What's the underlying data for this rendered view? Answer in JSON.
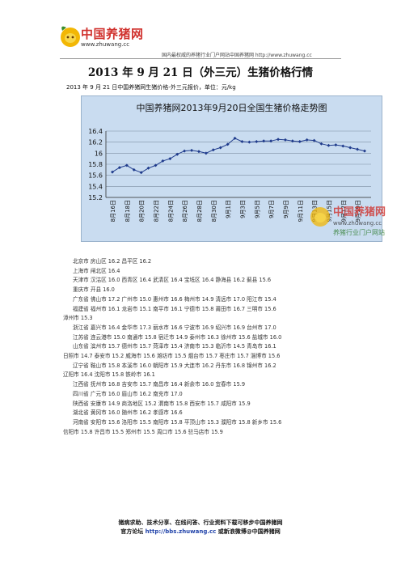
{
  "header": {
    "logo_text": "中国养猪网",
    "logo_url": "www.zhuwang.cc",
    "tagline": "国内最权威的养猪行业门户网站中国养猪网 http://www.zhuwang.cc"
  },
  "title": "2013 年 9 月 21 日（外三元）生猪价格行情",
  "subtitle": "2013 年 9 月 21 日中国养猪网生猪价格-外三元报价，单位：元/kg",
  "chart_data": {
    "type": "line",
    "title": "中国养猪网2013年9月20日全国生猪价格走势图",
    "categories": [
      "8月16日",
      "8月18日",
      "8月20日",
      "8月22日",
      "8月24日",
      "8月26日",
      "8月28日",
      "8月30日",
      "9月1日",
      "9月3日",
      "9月5日",
      "9月7日",
      "9月9日",
      "9月11日",
      "9月13日",
      "9月15日",
      "9月17日",
      "9月19日"
    ],
    "x": [
      "8月16日",
      "8月17日",
      "8月18日",
      "8月19日",
      "8月20日",
      "8月21日",
      "8月22日",
      "8月23日",
      "8月24日",
      "8月25日",
      "8月26日",
      "8月27日",
      "8月28日",
      "8月29日",
      "8月30日",
      "8月31日",
      "9月1日",
      "9月2日",
      "9月3日",
      "9月4日",
      "9月5日",
      "9月6日",
      "9月7日",
      "9月8日",
      "9月9日",
      "9月10日",
      "9月11日",
      "9月12日",
      "9月13日",
      "9月14日",
      "9月15日",
      "9月16日",
      "9月17日",
      "9月18日",
      "9月19日",
      "9月20日"
    ],
    "series": [
      {
        "values": [
          15.66,
          15.74,
          15.78,
          15.7,
          15.65,
          15.73,
          15.78,
          15.86,
          15.9,
          15.98,
          16.04,
          16.05,
          16.03,
          16.0,
          16.06,
          16.1,
          16.16,
          16.27,
          16.21,
          16.2,
          16.21,
          16.22,
          16.22,
          16.25,
          16.24,
          16.22,
          16.21,
          16.24,
          16.23,
          16.17,
          16.14,
          16.15,
          16.13,
          16.1,
          16.07,
          16.04
        ]
      }
    ],
    "yticks": [
      "15.2",
      "15.4",
      "15.6",
      "15.8",
      "16",
      "16.2",
      "16.4"
    ],
    "ylim": [
      15.2,
      16.4
    ],
    "line_color": "#1f3b8c",
    "grid": true
  },
  "watermark": {
    "text": "中国养猪网",
    "url": "www.zhuwang.cc",
    "tagline": "养猪行业门户网站"
  },
  "data_lines": [
    {
      "indent": true,
      "text": "北京市  房山区 16.2  昌平区 16.2"
    },
    {
      "indent": true,
      "text": "上海市  闸北区 16.4"
    },
    {
      "indent": true,
      "text": "天津市  汉沽区 16.0  西青区 16.4  武清区 16.4  宝坻区 16.4  静海县 16.2  蓟县 15.6"
    },
    {
      "indent": true,
      "text": "重庆市  开县 16.0"
    },
    {
      "indent": true,
      "text": "广东省  佛山市 17.2  广州市 15.0  惠州市 16.6  梅州市 14.9  清远市 17.0  阳江市 15.4"
    },
    {
      "indent": true,
      "text": "福建省  福州市 16.1  龙岩市 15.1  南平市 16.1  宁德市 15.8  莆田市 16.7  三明市 15.6"
    },
    {
      "indent": false,
      "text": "漳州市 15.3"
    },
    {
      "indent": true,
      "text": "浙江省  嘉兴市 16.4  金华市 17.3  丽水市 16.6  宁波市 16.9  绍兴市 16.9  台州市 17.0"
    },
    {
      "indent": true,
      "text": "江苏省  连云港市 15.0  南通市 15.8  宿迁市 14.9  泰州市 16.3  徐州市 15.6  盐城市 16.0"
    },
    {
      "indent": true,
      "text": "山东省  滨州市 15.7  德州市 15.7  菏泽市 15.4  济南市 15.3  临沂市 14.5  青岛市 16.1"
    },
    {
      "indent": false,
      "text": "日照市 14.7  泰安市 15.2  威海市 15.6  潍坊市 15.5  烟台市 15.7  枣庄市 15.7  淄博市 15.6"
    },
    {
      "indent": true,
      "text": "辽宁省  鞍山市 15.8  本溪市 16.0  朝阳市 15.9  大连市 16.2  丹东市 16.8  锦州市 16.2"
    },
    {
      "indent": false,
      "text": "辽阳市 16.4  沈阳市 15.8  铁岭市 16.1"
    },
    {
      "indent": true,
      "text": "江西省  抚州市 16.8  吉安市 15.7  南昌市 16.4  新余市 16.0  宜春市 15.9"
    },
    {
      "indent": true,
      "text": "四川省  广元市 16.0  眉山市 16.2  南充市 17.0"
    },
    {
      "indent": true,
      "text": "陕西省  安康市 14.9  商洛地区 15.2  渭南市 15.8  西安市 15.7  咸阳市 15.9"
    },
    {
      "indent": true,
      "text": "湖北省  黄冈市 16.0  随州市 16.2  孝感市 16.6"
    },
    {
      "indent": true,
      "text": "河南省  安阳市 15.6  洛阳市 15.5  南阳市 15.8  平顶山市 15.3  濮阳市 15.8  新乡市 15.6"
    },
    {
      "indent": false,
      "text": "信阳市 15.8  许昌市 15.5  郑州市 15.5  周口市 15.6  驻马店市 15.9"
    }
  ],
  "footer": {
    "line1": "猪病求助、技术分享、在线问答、行业资料下载可移步中国养猪网",
    "line2_prefix": "官方论坛 ",
    "line2_link": "http://bbs.zhuwang.cc",
    "line2_suffix": " 或新浪微博@中国养猪网"
  }
}
